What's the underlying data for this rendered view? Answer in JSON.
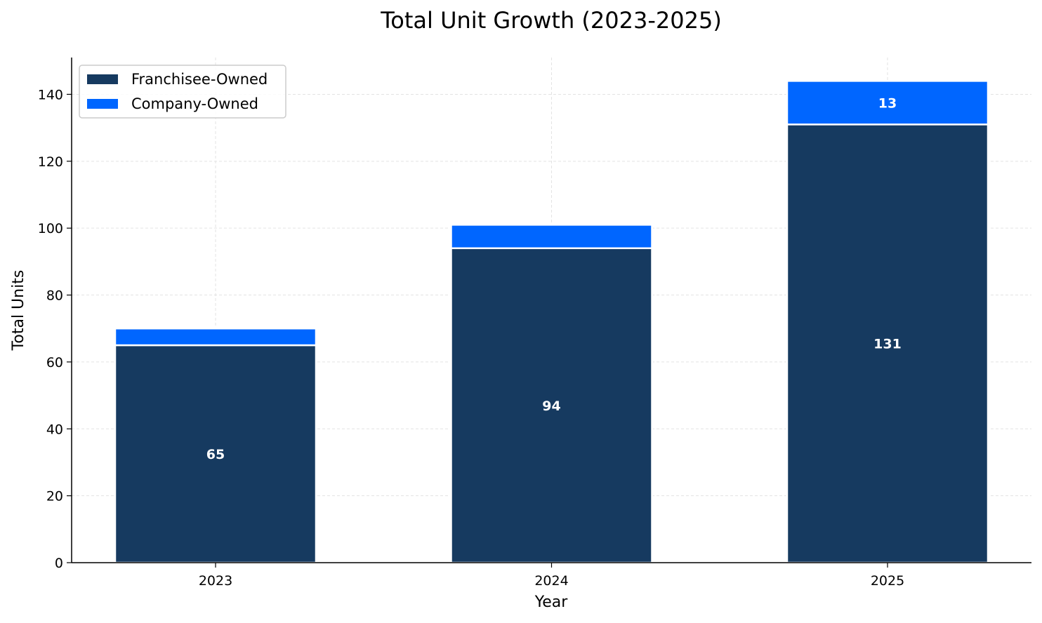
{
  "chart_data": {
    "type": "bar",
    "stacked": true,
    "title": "Total Unit Growth (2023-2025)",
    "xlabel": "Year",
    "ylabel": "Total Units",
    "categories": [
      "2023",
      "2024",
      "2025"
    ],
    "series": [
      {
        "name": "Franchisee-Owned",
        "values": [
          65,
          94,
          131
        ],
        "color": "#163a60",
        "value_labels": [
          "65",
          "94",
          "131"
        ]
      },
      {
        "name": "Company-Owned",
        "values": [
          5,
          7,
          13
        ],
        "color": "#0066ff",
        "value_labels": [
          "",
          "",
          "13"
        ]
      }
    ],
    "ylim": [
      0,
      151
    ],
    "yticks": [
      0,
      20,
      40,
      60,
      80,
      100,
      120,
      140
    ],
    "grid": true,
    "legend_position": "top-left"
  }
}
